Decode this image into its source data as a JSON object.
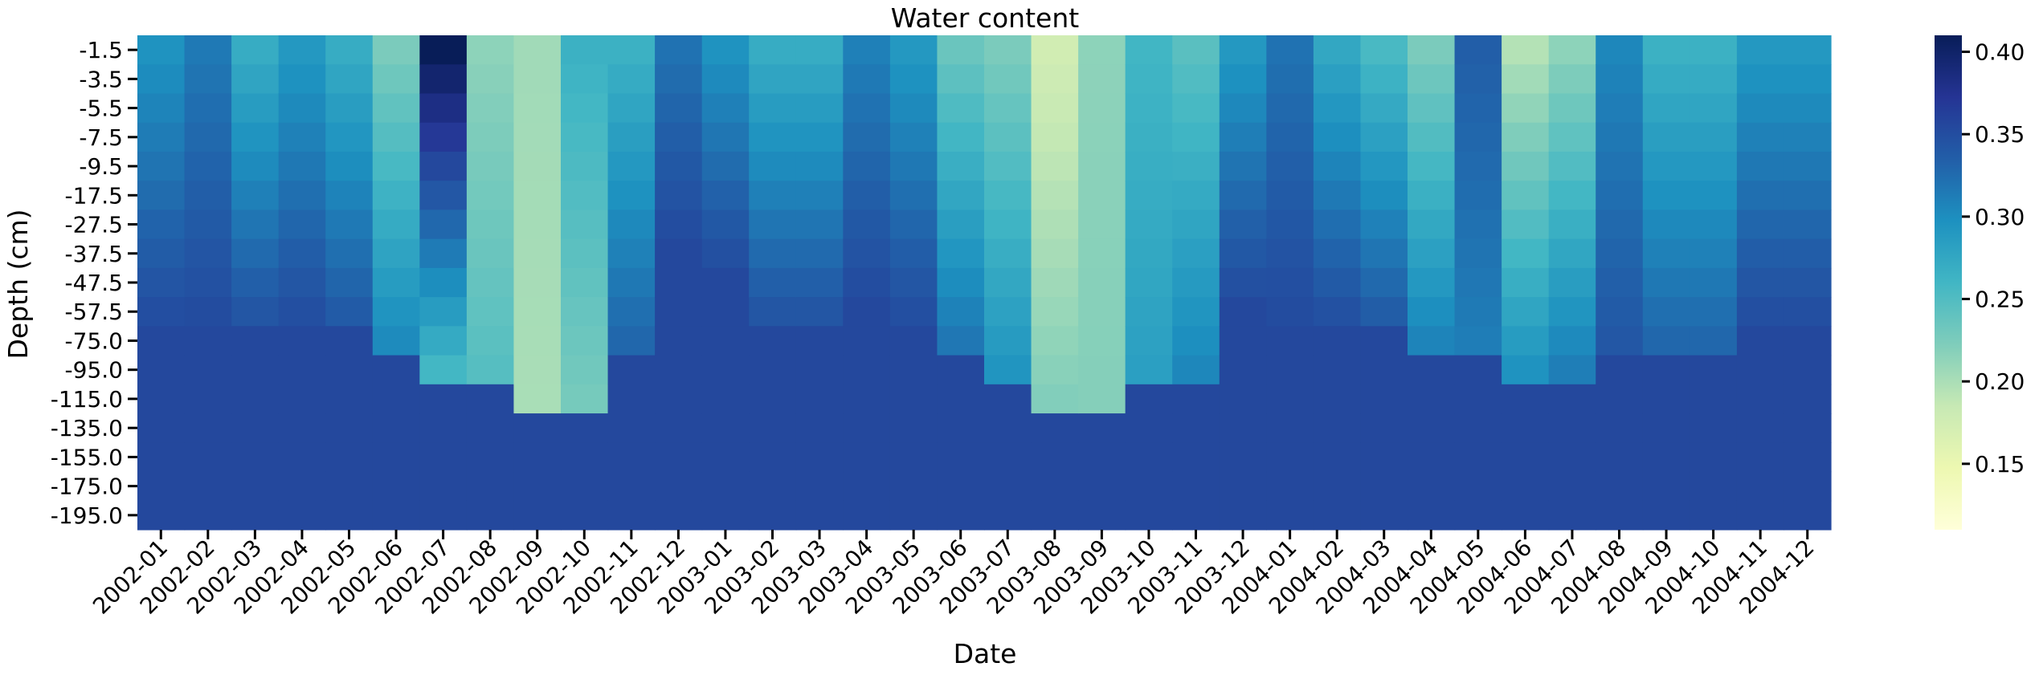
{
  "chart_data": {
    "type": "heatmap",
    "title": "Water content",
    "xlabel": "Date",
    "ylabel": "Depth (cm)",
    "x": [
      "2002-01",
      "2002-02",
      "2002-03",
      "2002-04",
      "2002-05",
      "2002-06",
      "2002-07",
      "2002-08",
      "2002-09",
      "2002-10",
      "2002-11",
      "2002-12",
      "2003-01",
      "2003-02",
      "2003-03",
      "2003-04",
      "2003-05",
      "2003-06",
      "2003-07",
      "2003-08",
      "2003-09",
      "2003-10",
      "2003-11",
      "2003-12",
      "2004-01",
      "2004-02",
      "2004-03",
      "2004-04",
      "2004-05",
      "2004-06",
      "2004-07",
      "2004-08",
      "2004-09",
      "2004-10",
      "2004-11",
      "2004-12"
    ],
    "y": [
      "-1.5",
      "-3.5",
      "-5.5",
      "-7.5",
      "-9.5",
      "-17.5",
      "-27.5",
      "-37.5",
      "-47.5",
      "-57.5",
      "-75.0",
      "-95.0",
      "-115.0",
      "-135.0",
      "-155.0",
      "-175.0",
      "-195.0"
    ],
    "value_range": [
      0.11,
      0.41
    ],
    "colorbar_ticks": [
      0.4,
      0.35,
      0.3,
      0.25,
      0.2,
      0.15
    ],
    "colorbar_tick_labels": [
      "0.40",
      "0.35",
      "0.30",
      "0.25",
      "0.20",
      "0.15"
    ],
    "colormap": [
      "#ffffd9",
      "#edf8b1",
      "#c7e9b4",
      "#7fcdbb",
      "#41b6c4",
      "#1d91c0",
      "#225ea8",
      "#253494",
      "#081d58"
    ],
    "surface_values": [
      0.295,
      0.315,
      0.27,
      0.29,
      0.27,
      0.225,
      0.41,
      0.215,
      0.205,
      0.265,
      0.265,
      0.32,
      0.295,
      0.27,
      0.27,
      0.31,
      0.29,
      0.235,
      0.225,
      0.175,
      0.215,
      0.26,
      0.245,
      0.29,
      0.32,
      0.275,
      0.255,
      0.225,
      0.335,
      0.195,
      0.215,
      0.305,
      0.265,
      0.265,
      0.29,
      0.29
    ],
    "deep_values": [
      0.355,
      0.355,
      0.35,
      0.355,
      0.345,
      0.31,
      0.245,
      0.25,
      0.2,
      0.225,
      0.335,
      0.355,
      0.355,
      0.35,
      0.35,
      0.355,
      0.355,
      0.325,
      0.3,
      0.225,
      0.22,
      0.285,
      0.31,
      0.355,
      0.355,
      0.355,
      0.345,
      0.315,
      0.31,
      0.305,
      0.32,
      0.345,
      0.335,
      0.335,
      0.355,
      0.355
    ],
    "transition_depths": [
      -75.0,
      -75.0,
      -75.0,
      -75.0,
      -75.0,
      -95.0,
      -115.0,
      -115.0,
      -135.0,
      -135.0,
      -95.0,
      -37.5,
      -47.5,
      -75.0,
      -75.0,
      -57.5,
      -75.0,
      -95.0,
      -115.0,
      -135.0,
      -135.0,
      -115.0,
      -115.0,
      -57.5,
      -75.0,
      -75.0,
      -75.0,
      -95.0,
      -95.0,
      -115.0,
      -115.0,
      -95.0,
      -95.0,
      -95.0,
      -75.0,
      -75.0
    ]
  }
}
